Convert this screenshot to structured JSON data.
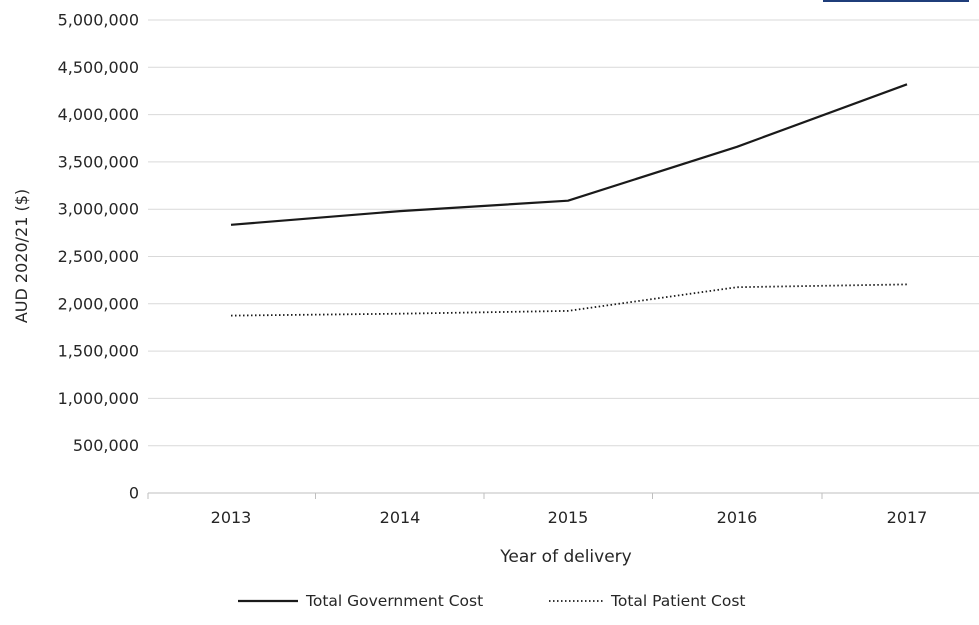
{
  "chart_data": {
    "type": "line",
    "title": "",
    "xlabel": "Year of delivery",
    "ylabel": "AUD 2020/21 ($)",
    "categories": [
      "2013",
      "2014",
      "2015",
      "2016",
      "2017"
    ],
    "ylim": [
      0,
      5000000
    ],
    "yticks": [
      0,
      500000,
      1000000,
      1500000,
      2000000,
      2500000,
      3000000,
      3500000,
      4000000,
      4500000,
      5000000
    ],
    "ytick_labels": [
      "0",
      "500,000",
      "1,000,000",
      "1,500,000",
      "2,000,000",
      "2,500,000",
      "3,000,000",
      "3,500,000",
      "4,000,000",
      "4,500,000",
      "5,000,000"
    ],
    "grid": true,
    "legend_position": "bottom",
    "series": [
      {
        "name": "Total Government Cost",
        "values": [
          2835000,
          2980000,
          3090000,
          3660000,
          4320000
        ],
        "style": "solid",
        "color": "#1a1a1a"
      },
      {
        "name": "Total Patient Cost",
        "values": [
          1875000,
          1895000,
          1925000,
          2175000,
          2205000
        ],
        "style": "dotted",
        "color": "#1a1a1a"
      }
    ]
  }
}
